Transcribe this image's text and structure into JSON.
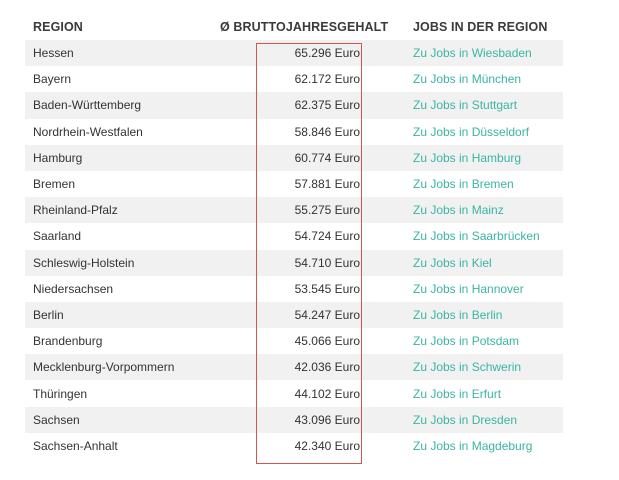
{
  "table": {
    "headers": {
      "region": "REGION",
      "salary": "Ø BRUTTOJAHRESGEHALT",
      "jobs": "JOBS IN DER REGION"
    },
    "rows": [
      {
        "region": "Hessen",
        "salary": "65.296 Euro",
        "link": "Zu Jobs in Wiesbaden"
      },
      {
        "region": "Bayern",
        "salary": "62.172 Euro",
        "link": "Zu Jobs in München"
      },
      {
        "region": "Baden-Württemberg",
        "salary": "62.375 Euro",
        "link": "Zu Jobs in Stuttgart"
      },
      {
        "region": "Nordrhein-Westfalen",
        "salary": "58.846 Euro",
        "link": "Zu Jobs in Düsseldorf"
      },
      {
        "region": "Hamburg",
        "salary": "60.774 Euro",
        "link": "Zu Jobs in Hamburg"
      },
      {
        "region": "Bremen",
        "salary": "57.881 Euro",
        "link": "Zu Jobs in Bremen"
      },
      {
        "region": "Rheinland-Pfalz",
        "salary": "55.275 Euro",
        "link": "Zu Jobs in Mainz"
      },
      {
        "region": "Saarland",
        "salary": "54.724 Euro",
        "link": "Zu Jobs in Saarbrücken"
      },
      {
        "region": "Schleswig-Holstein",
        "salary": "54.710 Euro",
        "link": "Zu Jobs in Kiel"
      },
      {
        "region": "Niedersachsen",
        "salary": "53.545 Euro",
        "link": "Zu Jobs in Hannover"
      },
      {
        "region": "Berlin",
        "salary": "54.247 Euro",
        "link": "Zu Jobs in Berlin"
      },
      {
        "region": "Brandenburg",
        "salary": "45.066 Euro",
        "link": "Zu Jobs in Potsdam"
      },
      {
        "region": "Mecklenburg-Vorpommern",
        "salary": "42.036 Euro",
        "link": "Zu Jobs in Schwerin"
      },
      {
        "region": "Thüringen",
        "salary": "44.102 Euro",
        "link": "Zu Jobs in Erfurt"
      },
      {
        "region": "Sachsen",
        "salary": "43.096 Euro",
        "link": "Zu Jobs in Dresden"
      },
      {
        "region": "Sachsen-Anhalt",
        "salary": "42.340 Euro",
        "link": "Zu Jobs in Magdeburg"
      }
    ]
  },
  "colors": {
    "link": "#3ab5a3",
    "stripe": "#f1f1f1",
    "highlight_border": "#d9534f",
    "text": "#333333"
  }
}
